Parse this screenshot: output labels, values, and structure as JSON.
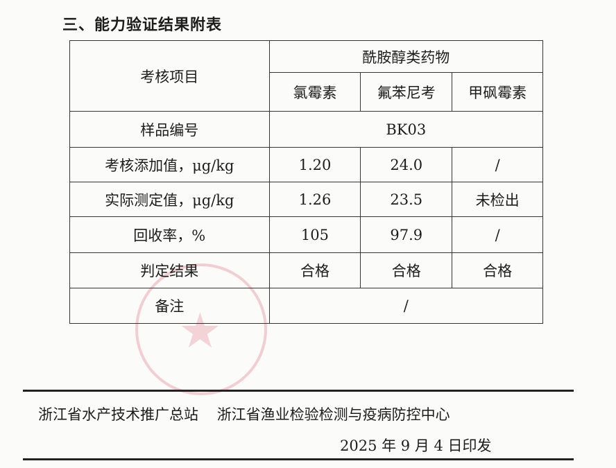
{
  "heading": "三、能力验证结果附表",
  "table": {
    "item_header": "考核项目",
    "group_header": "酰胺醇类药物",
    "drugs": [
      "氯霉素",
      "氟苯尼考",
      "甲砜霉素"
    ],
    "sample_label": "样品编号",
    "sample_value": "BK03",
    "rows": [
      {
        "label": "考核添加值，μg/kg",
        "values": [
          "1.20",
          "24.0",
          "/"
        ]
      },
      {
        "label": "实际测定值，μg/kg",
        "values": [
          "1.26",
          "23.5",
          "未检出"
        ]
      },
      {
        "label": "回收率，%",
        "values": [
          "105",
          "97.9",
          "/"
        ]
      },
      {
        "label": "判定结果",
        "values": [
          "合格",
          "合格",
          "合格"
        ]
      }
    ],
    "remark_label": "备注",
    "remark_value": "/"
  },
  "footer": {
    "issuer1": "浙江省水产技术推广总站",
    "issuer2": "浙江省渔业检验检测与疫病防控中心",
    "date": "2025 年 9 月 4 日印发"
  },
  "colors": {
    "seal": "#dc5a6e"
  }
}
